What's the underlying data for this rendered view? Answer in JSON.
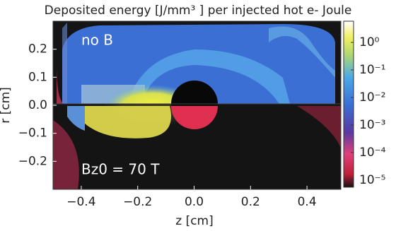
{
  "chart_data": {
    "type": "heatmap",
    "title": "Deposited energy [J/mm³ ] per injected hot e- Joule",
    "xlabel": "z  [cm]",
    "ylabel": "r [cm]",
    "annotations": [
      "no B",
      "Bz0 = 70 T"
    ],
    "xlim": [
      -0.5,
      0.52
    ],
    "xticks": [
      {
        "value": -0.4,
        "label": "−0.4"
      },
      {
        "value": -0.2,
        "label": "−0.2"
      },
      {
        "value": 0,
        "label": "0.0"
      },
      0.2,
      0.4
    ],
    "ylim": [
      -0.3,
      0.3
    ],
    "yticks": [
      {
        "value": -0.2,
        "label": "−0.2"
      },
      {
        "value": -0.1,
        "label": "−0.1"
      },
      {
        "value": 0,
        "label": "0.0"
      },
      0.1,
      0.2
    ],
    "colorbar": {
      "scale": "log",
      "lim": [
        5.5e-06,
        5.9
      ],
      "ticks": [
        {
          "value": 1e-05,
          "label": "10⁻⁵"
        },
        {
          "value": 0.0001,
          "label": "10⁻⁴"
        },
        {
          "value": 0.001,
          "label": "10⁻³"
        },
        {
          "value": 0.01,
          "label": "10⁻²"
        },
        {
          "value": 0.1,
          "label": "10⁻¹"
        },
        {
          "value": 1,
          "label": "10⁰"
        }
      ]
    }
  }
}
